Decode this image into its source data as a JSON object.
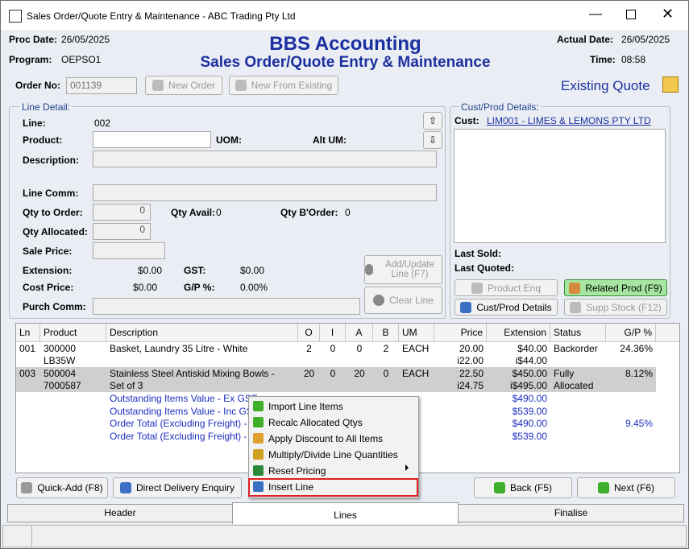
{
  "window": {
    "title": "Sales Order/Quote Entry & Maintenance - ABC Trading Pty Ltd"
  },
  "header": {
    "proc_date_label": "Proc Date:",
    "proc_date": "26/05/2025",
    "program_label": "Program:",
    "program": "OEPSO1",
    "app_title": "BBS Accounting",
    "subtitle": "Sales Order/Quote Entry & Maintenance",
    "actual_date_label": "Actual Date:",
    "actual_date": "26/05/2025",
    "time_label": "Time:",
    "time": "08:58"
  },
  "order": {
    "order_no_label": "Order No:",
    "order_no": "001139",
    "new_order": "New Order",
    "new_from_existing": "New From Existing",
    "status": "Existing Quote"
  },
  "line_detail": {
    "legend": "Line Detail:",
    "line_label": "Line:",
    "line": "002",
    "product_label": "Product:",
    "uom_label": "UOM:",
    "alt_um_label": "Alt UM:",
    "description_label": "Description:",
    "line_comm_label": "Line Comm:",
    "qty_to_order_label": "Qty to Order:",
    "qty_to_order": "0",
    "qty_avail_label": "Qty Avail:",
    "qty_avail": "0",
    "qty_border_label": "Qty B'Order:",
    "qty_border": "0",
    "qty_allocated_label": "Qty Allocated:",
    "qty_allocated": "0",
    "sale_price_label": "Sale Price:",
    "extension_label": "Extension:",
    "extension": "$0.00",
    "gst_label": "GST:",
    "gst": "$0.00",
    "cost_price_label": "Cost Price:",
    "cost_price": "$0.00",
    "gp_label": "G/P %:",
    "gp": "0.00%",
    "purch_comm_label": "Purch Comm:",
    "add_update": "Add/Update\nLine (F7)",
    "clear_line": "Clear Line"
  },
  "cust_prod": {
    "legend": "Cust/Prod Details:",
    "cust_label": "Cust:",
    "cust": "LIM001 - LIMES & LEMONS PTY LTD",
    "last_sold_label": "Last Sold:",
    "last_quoted_label": "Last Quoted:",
    "product_enq": "Product Enq",
    "related_prod": "Related Prod (F9)",
    "cust_prod_details": "Cust/Prod Details",
    "supp_stock": "Supp Stock (F12)"
  },
  "table": {
    "columns": [
      "Ln",
      "Product",
      "Description",
      "O",
      "I",
      "A",
      "B",
      "UM",
      "Price",
      "Extension",
      "Status",
      "G/P %"
    ],
    "rows": [
      [
        "001",
        "300000\nLB35W",
        "Basket, Laundry 35 Litre - White",
        "2",
        "0",
        "0",
        "2",
        "EACH",
        "20.00\ni22.00",
        "$40.00\ni$44.00",
        "Backorder",
        "24.36%"
      ],
      [
        "003",
        "500004\n7000587",
        "Stainless Steel Antiskid Mixing Bowls -\nSet of 3",
        "20",
        "0",
        "20",
        "0",
        "EACH",
        "22.50\ni24.75",
        "$450.00\ni$495.00",
        "Fully\nAllocated",
        "8.12%"
      ]
    ],
    "totals": [
      {
        "label": "Outstanding Items Value - Ex GST",
        "value": "$490.00"
      },
      {
        "label": "Outstanding Items Value - Inc GST",
        "value": "$539.00"
      },
      {
        "label": "Order Total (Excluding Freight) - Ex GST",
        "value": "$490.00",
        "gp": "9.45%"
      },
      {
        "label": "Order Total (Excluding Freight) - Inc GST",
        "value": "$539.00"
      }
    ]
  },
  "context_menu": {
    "items": [
      "Import Line Items",
      "Recalc Allocated Qtys",
      "Apply Discount to All Items",
      "Multiply/Divide Line Quantities",
      "Reset Pricing",
      "Insert Line"
    ]
  },
  "footer": {
    "quick_add": "Quick-Add (F8)",
    "direct_delivery": "Direct Delivery Enquiry",
    "back": "Back (F5)",
    "next": "Next (F6)",
    "tabs": [
      "Header",
      "Lines",
      "Finalise"
    ]
  }
}
